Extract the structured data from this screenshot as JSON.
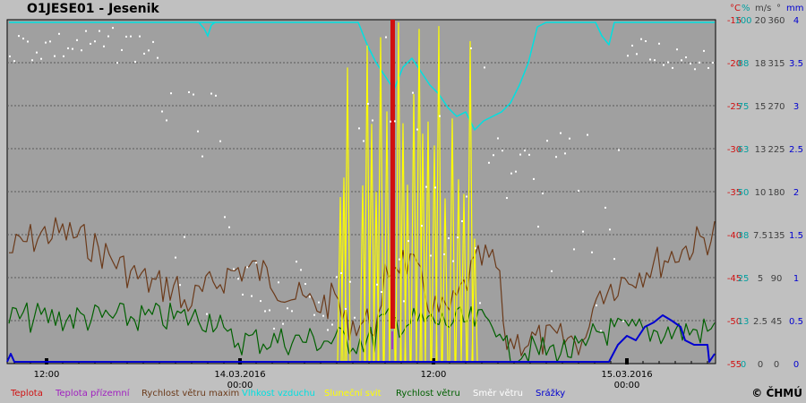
{
  "station_title": "O1JESE01 - Jesenik",
  "units": [
    {
      "label": "°C",
      "color": "#d01010",
      "x": 815
    },
    {
      "label": "%",
      "color": "#00a0a0",
      "x": 828
    },
    {
      "label": "m/s",
      "color": "#404040",
      "x": 843
    },
    {
      "label": "°",
      "color": "#404040",
      "x": 867
    },
    {
      "label": "mm",
      "color": "#0000d0",
      "x": 878
    }
  ],
  "copyright": "© ČHMÚ",
  "legend": [
    {
      "label": "Teplota",
      "color": "#d01010",
      "x": 12
    },
    {
      "label": "Teplota přízemní",
      "color": "#a020c0",
      "x": 62
    },
    {
      "label": "Rychlost větru maxim",
      "color": "#6b3a1a",
      "x": 158
    },
    {
      "label": "Vlhkost vzduchu",
      "color": "#00e0e0",
      "x": 270
    },
    {
      "label": "Sluneční svit",
      "color": "#ffff00",
      "x": 362
    },
    {
      "label": "Rychlost větru",
      "color": "#006000",
      "x": 442
    },
    {
      "label": "Směr větru",
      "color": "#ffffff",
      "x": 528
    },
    {
      "label": "Srážky",
      "color": "#0000d0",
      "x": 598
    }
  ],
  "chart_data": {
    "type": "line",
    "x_tick_labels": [
      {
        "time": "13.03.2016 12:00",
        "label": "12:00",
        "sub": ""
      },
      {
        "time": "14.03.2016 00:00",
        "label": "14.03.2016",
        "sub": "00:00"
      },
      {
        "time": "14.03.2016 12:00",
        "label": "12:00",
        "sub": ""
      },
      {
        "time": "15.03.2016 00:00",
        "label": "15.03.2016",
        "sub": "00:00"
      }
    ],
    "axes": {
      "temperature_c": [
        -15,
        -20,
        -25,
        -30,
        -35,
        -40,
        -45,
        -50,
        -55
      ],
      "humidity_pct": [
        100,
        88,
        75,
        63,
        50,
        38,
        25,
        13,
        0
      ],
      "wind_speed_ms": [
        20,
        18,
        15,
        13,
        10,
        7.5,
        5,
        2.5,
        0
      ],
      "wind_dir_deg": [
        360,
        315,
        270,
        225,
        180,
        135,
        90,
        45,
        0
      ],
      "precip_mm": [
        4,
        3.5,
        3,
        2.5,
        2,
        1.5,
        1,
        0.5,
        0
      ]
    },
    "grid": true,
    "series": [
      {
        "name": "Teplota",
        "color": "#d01010",
        "note": "off-scale"
      },
      {
        "name": "Vlhkost vzduchu",
        "color": "#00e0e0"
      },
      {
        "name": "Rychlost větru maxim",
        "color": "#6b3a1a"
      },
      {
        "name": "Rychlost větru",
        "color": "#006000"
      },
      {
        "name": "Sluneční svit",
        "color": "#ffff00"
      },
      {
        "name": "Směr větru",
        "color": "#ffffff"
      },
      {
        "name": "Srážky",
        "color": "#0000d0"
      }
    ]
  }
}
